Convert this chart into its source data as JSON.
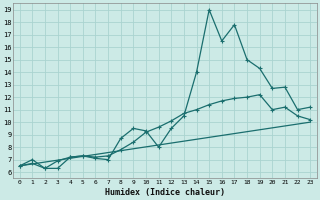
{
  "xlabel": "Humidex (Indice chaleur)",
  "background_color": "#cceae6",
  "grid_color": "#aad4d0",
  "line_color": "#1a6e6e",
  "xlim": [
    -0.5,
    23.5
  ],
  "ylim": [
    5.5,
    19.5
  ],
  "yticks": [
    6,
    7,
    8,
    9,
    10,
    11,
    12,
    13,
    14,
    15,
    16,
    17,
    18,
    19
  ],
  "xticks": [
    0,
    1,
    2,
    3,
    4,
    5,
    6,
    7,
    8,
    9,
    10,
    11,
    12,
    13,
    14,
    15,
    16,
    17,
    18,
    19,
    20,
    21,
    22,
    23
  ],
  "main_line_x": [
    0,
    1,
    2,
    3,
    4,
    5,
    6,
    7,
    8,
    9,
    10,
    11,
    12,
    13,
    14,
    15,
    16,
    17,
    18,
    19,
    20,
    21,
    22,
    23
  ],
  "main_line_y": [
    6.5,
    7.0,
    6.3,
    6.3,
    7.2,
    7.3,
    7.1,
    7.0,
    8.7,
    9.5,
    9.3,
    8.0,
    9.5,
    10.5,
    14.0,
    19.0,
    16.5,
    17.8,
    15.0,
    14.3,
    12.7,
    12.8,
    11.0,
    11.2
  ],
  "line2_x": [
    0,
    1,
    2,
    3,
    4,
    5,
    6,
    7,
    8,
    9,
    10,
    11,
    12,
    13,
    14,
    15,
    16,
    17,
    18,
    19,
    20,
    21,
    22,
    23
  ],
  "line2_y": [
    6.5,
    6.7,
    6.3,
    6.9,
    7.2,
    7.3,
    7.2,
    7.3,
    7.8,
    8.4,
    9.2,
    9.6,
    10.1,
    10.7,
    11.0,
    11.4,
    11.7,
    11.9,
    12.0,
    12.2,
    11.0,
    11.2,
    10.5,
    10.2
  ],
  "line3_x": [
    0,
    23
  ],
  "line3_y": [
    6.5,
    10.0
  ]
}
